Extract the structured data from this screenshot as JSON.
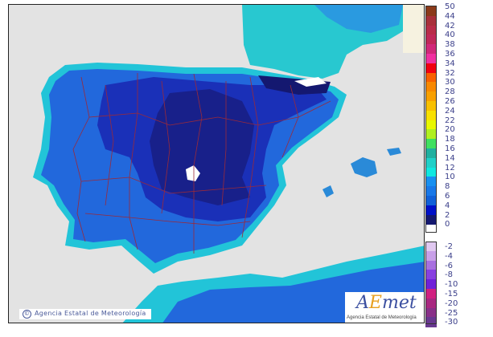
{
  "map": {
    "copyright": "Agencia Estatal de Meteorología",
    "copyright_symbol": "©",
    "logo": {
      "text_a": "A",
      "text_e": "E",
      "text_met": "met",
      "subtitle": "Agencia Estatal de Meteorología"
    },
    "colors": {
      "sea": "#e3e3e3",
      "land_base": "#2268dc",
      "land_cold": "#16208c",
      "coast": "#22c4d8",
      "borders": "#9a2a3a"
    }
  },
  "legend": {
    "positive": [
      {
        "label": "50",
        "color": "#8b3a1a"
      },
      {
        "label": "44",
        "color": "#a8303a"
      },
      {
        "label": "42",
        "color": "#b82c48"
      },
      {
        "label": "40",
        "color": "#c02858"
      },
      {
        "label": "38",
        "color": "#d02878"
      },
      {
        "label": "36",
        "color": "#f030a0"
      },
      {
        "label": "34",
        "color": "#f00010"
      },
      {
        "label": "32",
        "color": "#f86000"
      },
      {
        "label": "30",
        "color": "#f88800"
      },
      {
        "label": "28",
        "color": "#f8a000"
      },
      {
        "label": "26",
        "color": "#f8c000"
      },
      {
        "label": "24",
        "color": "#f8e000"
      },
      {
        "label": "22",
        "color": "#e8f800"
      },
      {
        "label": "20",
        "color": "#b0f020"
      },
      {
        "label": "18",
        "color": "#40e060"
      },
      {
        "label": "16",
        "color": "#20b0a0"
      },
      {
        "label": "14",
        "color": "#20d0c8"
      },
      {
        "label": "12",
        "color": "#10e8e0"
      },
      {
        "label": "10",
        "color": "#1890f0"
      },
      {
        "label": "8",
        "color": "#1878e8"
      },
      {
        "label": "6",
        "color": "#1060d8"
      },
      {
        "label": "4",
        "color": "#0010c8"
      },
      {
        "label": "2",
        "color": "#141870"
      },
      {
        "label": "0",
        "color": ""
      }
    ],
    "negative": [
      {
        "label": "-2",
        "color": "#e0c8f0"
      },
      {
        "label": "-4",
        "color": "#c8a0e8"
      },
      {
        "label": "-6",
        "color": "#a870e0"
      },
      {
        "label": "-8",
        "color": "#8840e0"
      },
      {
        "label": "-10",
        "color": "#7020d8"
      },
      {
        "label": "-15",
        "color": "#d02080"
      },
      {
        "label": "-20",
        "color": "#a82880"
      },
      {
        "label": "-25",
        "color": "#883088"
      },
      {
        "label": "-30",
        "color": "#683890"
      }
    ]
  }
}
